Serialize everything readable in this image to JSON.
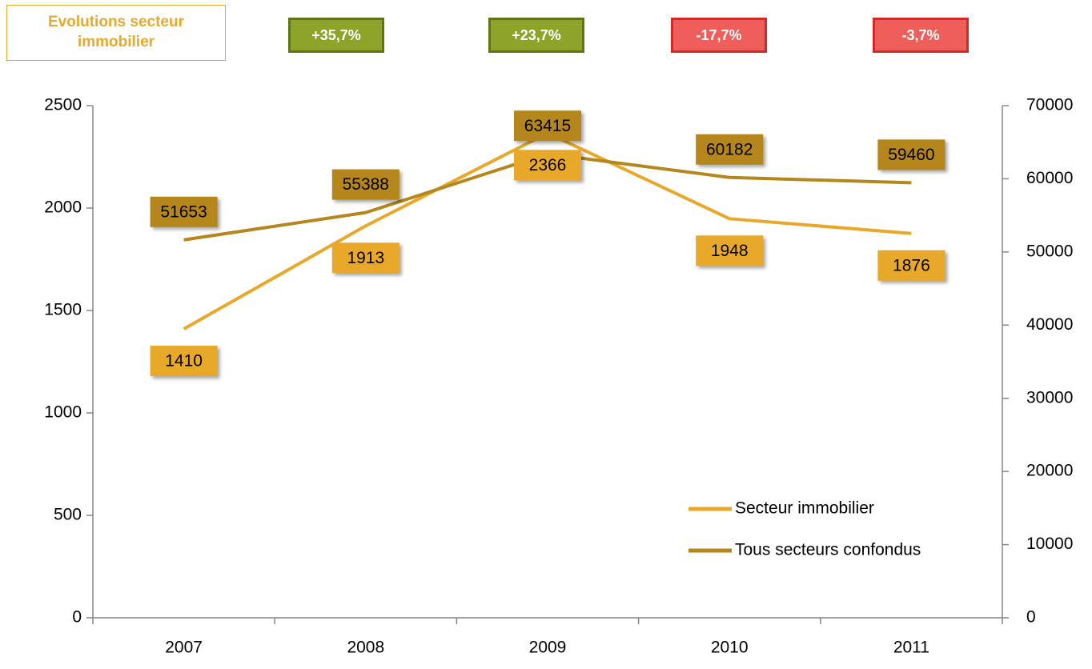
{
  "chart_data": {
    "type": "line",
    "title": "Evolutions secteur immobilier",
    "annotations": [
      {
        "text": "+35,7%",
        "color": "#8ea32a",
        "border_color": "#5f7415"
      },
      {
        "text": "+23,7%",
        "color": "#8ea32a",
        "border_color": "#5f7415"
      },
      {
        "text": "-17,7%",
        "color": "#ee5f5b",
        "border_color": "#d42a26"
      },
      {
        "text": "-3,7%",
        "color": "#ee5f5b",
        "border_color": "#d42a26"
      }
    ],
    "categories": [
      "2007",
      "2008",
      "2009",
      "2010",
      "2011"
    ],
    "series": [
      {
        "name": "Secteur immobilier",
        "color": "#e8a82a",
        "values": [
          1410,
          1913,
          2366,
          1948,
          1876
        ]
      },
      {
        "name": "Tous secteurs confondus",
        "color": "#b5861c",
        "axis": "y2",
        "values": [
          51653,
          55388,
          63415,
          60182,
          59460
        ]
      }
    ],
    "ylim": [
      0,
      2500
    ],
    "yticks": [
      0,
      500,
      1000,
      1500,
      2000,
      2500
    ],
    "y2lim": [
      0,
      70000
    ],
    "y2ticks": [
      0,
      10000,
      20000,
      30000,
      40000,
      50000,
      60000,
      70000
    ],
    "grid": false,
    "legend": "lower right"
  }
}
